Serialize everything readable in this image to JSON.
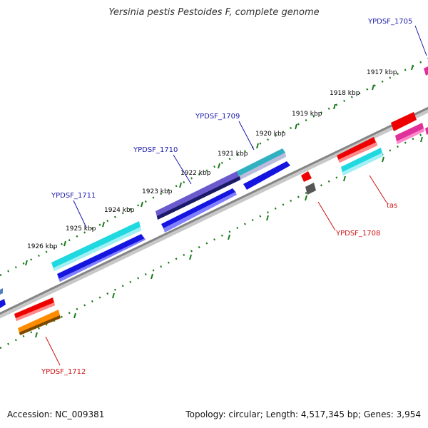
{
  "title": "Yersinia pestis Pestoides F, complete genome",
  "footer": {
    "accession": "Accession: NC_009381",
    "summary": "Topology: circular; Length: 4,517,345 bp; Genes: 3,954"
  },
  "colors": {
    "backbone": "#888888",
    "tick": "#1a7a1a",
    "label_forward": "#1a1aaa",
    "label_reverse": "#cc1111"
  },
  "kbp_ticks": [
    "1917 kbp",
    "1918 kbp",
    "1919 kbp",
    "1920 kbp",
    "1921 kbp",
    "1922 kbp",
    "1923 kbp",
    "1924 kbp",
    "1925 kbp",
    "1926 kbp"
  ],
  "gene_labels": {
    "forward": [
      "YPDSF_1705",
      "YPDSF_1709",
      "YPDSF_1710",
      "YPDSF_1711"
    ],
    "reverse": [
      "YPDSF_1708",
      "tas",
      "YPDSF_1712"
    ]
  }
}
